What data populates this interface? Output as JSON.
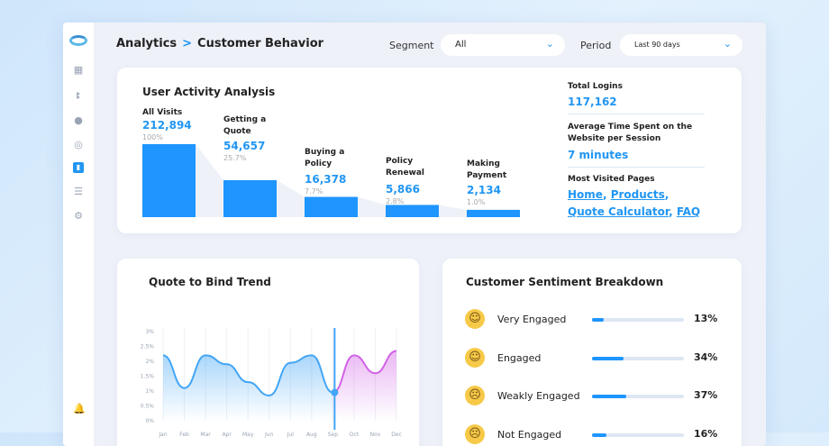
{
  "sidebar": {
    "icons": [
      "dashboard-icon",
      "users-icon",
      "pie-icon",
      "target-icon",
      "analytics-icon",
      "sliders-icon",
      "settings-icon"
    ],
    "active": "analytics-icon"
  },
  "header": {
    "breadcrumb": [
      "Analytics",
      "Customer Behavior"
    ],
    "separator": ">",
    "segment_label": "Segment",
    "segment_value": "All",
    "period_label": "Period",
    "period_value": "Last 90 days"
  },
  "activity": {
    "title": "User Activity Analysis",
    "funnel": [
      {
        "label": "All Visits",
        "value": "212,894",
        "pct": "100%",
        "fraction": 1.0
      },
      {
        "label": "Getting a Quote",
        "value": "54,657",
        "pct": "25.7%",
        "fraction": 0.257
      },
      {
        "label": "Buying a Policy",
        "value": "16,378",
        "pct": "7.7%",
        "fraction": 0.077
      },
      {
        "label": "Policy Renewal",
        "value": "5,866",
        "pct": "2.8%",
        "fraction": 0.028
      },
      {
        "label": "Making Payment",
        "value": "2,134",
        "pct": "1.0%",
        "fraction": 0.01
      }
    ],
    "total_logins_label": "Total Logins",
    "total_logins": "117,162",
    "avg_time_label": "Average Time Spent on the Website per Session",
    "avg_time": "7 minutes",
    "most_visited_label": "Most Visited Pages",
    "most_visited": [
      "Home",
      "Products",
      "Quote Calculator",
      "FAQ"
    ]
  },
  "trend": {
    "title": "Quote to Bind Trend"
  },
  "chart_data": {
    "type": "area",
    "title": "Quote to Bind Trend",
    "categories": [
      "Jan",
      "Feb",
      "Mar",
      "Apr",
      "May",
      "Jun",
      "Jul",
      "Aug",
      "Sep",
      "Oct",
      "Nov",
      "Dec"
    ],
    "yticks": [
      "0%",
      "0.5%",
      "1%",
      "1.5%",
      "2%",
      "2.5%",
      "3%"
    ],
    "ylim": [
      0,
      3
    ],
    "grid": "vertical",
    "series": [
      {
        "values": [
          2.2,
          1.1,
          2.2,
          1.9,
          1.3,
          0.85,
          1.95,
          2.2,
          0.95,
          null,
          null,
          null
        ],
        "color": "#42a5f5"
      },
      {
        "values": [
          null,
          null,
          null,
          null,
          null,
          null,
          null,
          null,
          0.95,
          2.2,
          1.6,
          2.35
        ],
        "color": "#d162e6"
      }
    ],
    "marker": "Sep"
  },
  "sentiment": {
    "title": "Customer Sentiment Breakdown",
    "items": [
      {
        "label": "Very Engaged",
        "pct": "13%",
        "value": 0.13,
        "icon": "smiling-face-icon"
      },
      {
        "label": "Engaged",
        "pct": "34%",
        "value": 0.34,
        "icon": "slight-smile-icon"
      },
      {
        "label": "Weakly Engaged",
        "pct": "37%",
        "value": 0.37,
        "icon": "confused-face-icon"
      },
      {
        "label": "Not Engaged",
        "pct": "16%",
        "value": 0.16,
        "icon": "neutral-face-icon"
      }
    ]
  }
}
